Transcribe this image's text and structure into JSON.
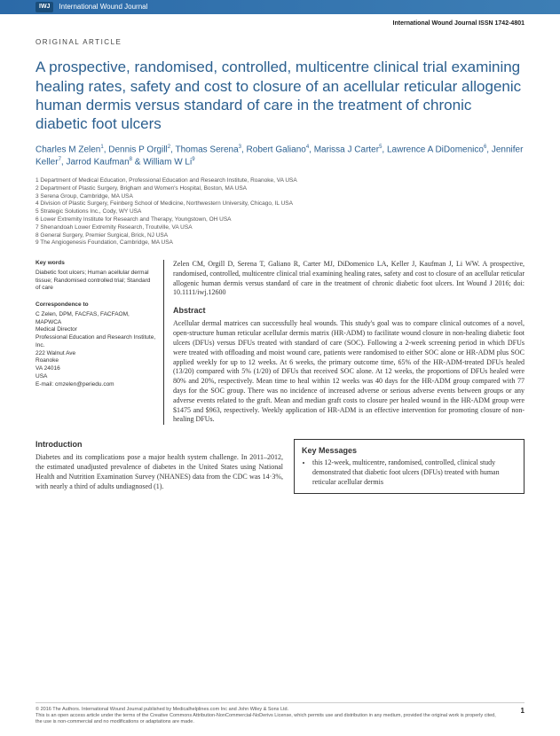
{
  "banner": {
    "badge": "IWJ",
    "journal": "International Wound Journal"
  },
  "issn_line": "International Wound Journal ISSN 1742-4801",
  "article_type": "ORIGINAL ARTICLE",
  "title": "A prospective, randomised, controlled, multicentre clinical trial examining healing rates, safety and cost to closure of an acellular reticular allogenic human dermis versus standard of care in the treatment of chronic diabetic foot ulcers",
  "authors_html": "Charles M Zelen<sup>1</sup>, Dennis P Orgill<sup>2</sup>, Thomas Serena<sup>3</sup>, Robert Galiano<sup>4</sup>, Marissa J Carter<sup>5</sup>, Lawrence A DiDomenico<sup>6</sup>, Jennifer Keller<sup>7</sup>, Jarrod Kaufman<sup>8</sup> & William W Li<sup>9</sup>",
  "affiliations": [
    "1 Department of Medical Education, Professional Education and Research Institute, Roanoke, VA USA",
    "2 Department of Plastic Surgery, Brigham and Women's Hospital, Boston, MA USA",
    "3 Serena Group, Cambridge, MA USA",
    "4 Division of Plastic Surgery, Feinberg School of Medicine, Northwestern University, Chicago, IL USA",
    "5 Strategic Solutions Inc., Cody, WY USA",
    "6 Lower Extremity Institute for Research and Therapy, Youngstown, OH USA",
    "7 Shenandoah Lower Extremity Research, Troutville, VA USA",
    "8 General Surgery, Premier Surgical, Brick, NJ USA",
    "9 The Angiogenesis Foundation, Cambridge, MA USA"
  ],
  "keywords": {
    "head": "Key words",
    "text": "Diabetic foot ulcers; Human acellular dermal tissue; Randomised controlled trial; Standard of care"
  },
  "correspondence": {
    "head": "Correspondence to",
    "lines": [
      "C Zelen, DPM, FACFAS, FACFAOM, MAPWCA",
      "Medical Director",
      "Professional Education and Research Institute, Inc.",
      "222 Walnut Ave",
      "Roanoke",
      "VA 24016",
      "USA",
      "E-mail: cmzelen@periedu.com"
    ]
  },
  "citation": "Zelen CM, Orgill D, Serena T, Galiano R, Carter MJ, DiDomenico LA, Keller J, Kaufman J, Li WW. A prospective, randomised, controlled, multicentre clinical trial examining healing rates, safety and cost to closure of an acellular reticular allogenic human dermis versus standard of care in the treatment of chronic diabetic foot ulcers. Int Wound J 2016; doi: 10.1111/iwj.12600",
  "abstract": {
    "head": "Abstract",
    "text": "Acellular dermal matrices can successfully heal wounds. This study's goal was to compare clinical outcomes of a novel, open-structure human reticular acellular dermis matrix (HR-ADM) to facilitate wound closure in non-healing diabetic foot ulcers (DFUs) versus DFUs treated with standard of care (SOC). Following a 2-week screening period in which DFUs were treated with offloading and moist wound care, patients were randomised to either SOC alone or HR-ADM plus SOC applied weekly for up to 12 weeks. At 6 weeks, the primary outcome time, 65% of the HR-ADM-treated DFUs healed (13/20) compared with 5% (1/20) of DFUs that received SOC alone. At 12 weeks, the proportions of DFUs healed were 80% and 20%, respectively. Mean time to heal within 12 weeks was 40 days for the HR-ADM group compared with 77 days for the SOC group. There was no incidence of increased adverse or serious adverse events between groups or any adverse events related to the graft. Mean and median graft costs to closure per healed wound in the HR-ADM group were $1475 and $963, respectively. Weekly application of HR-ADM is an effective intervention for promoting closure of non-healing DFUs."
  },
  "introduction": {
    "head": "Introduction",
    "text": "Diabetes and its complications pose a major health system challenge. In 2011–2012, the estimated unadjusted prevalence of diabetes in the United States using National Health and Nutrition Examination Survey (NHANES) data from the CDC was 14·3%, with nearly a third of adults undiagnosed (1)."
  },
  "key_messages": {
    "head": "Key Messages",
    "items": [
      "this 12-week, multicentre, randomised, controlled, clinical study demonstrated that diabetic foot ulcers (DFUs) treated with human reticular acellular dermis"
    ]
  },
  "footer": {
    "line1": "© 2016 The Authors. International Wound Journal published by Medicalhelplines.com Inc and John Wiley & Sons Ltd.",
    "line2": "This is an open access article under the terms of the Creative Commons Attribution-NonCommercial-NoDerivs License, which permits use and distribution in any medium, provided the original work is properly cited, the use is non-commercial and no modifications or adaptations are made.",
    "page": "1"
  },
  "colors": {
    "banner_bg": "#2b6aa8",
    "title_color": "#2b5f8f",
    "text": "#333333"
  }
}
